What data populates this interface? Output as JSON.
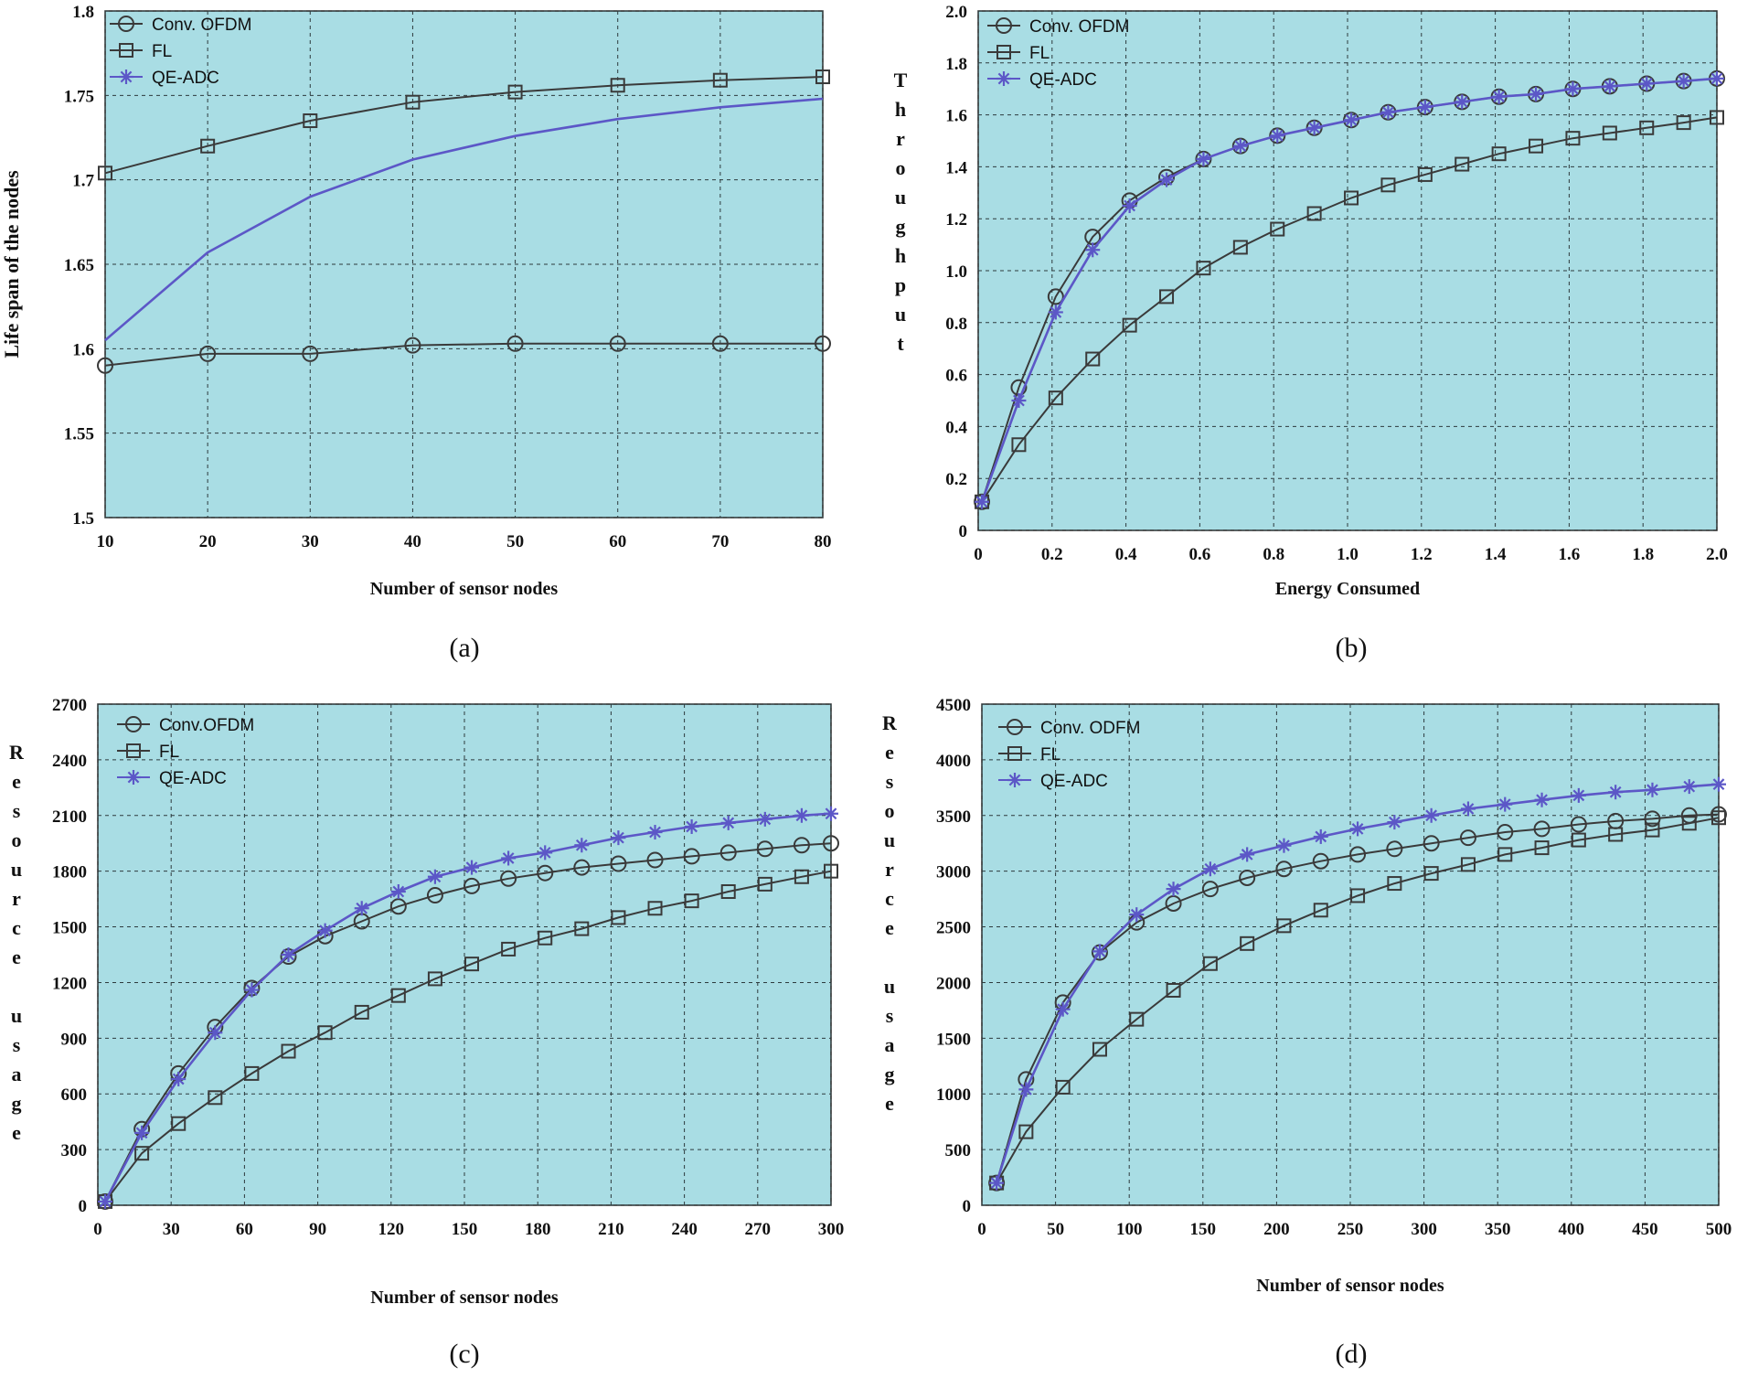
{
  "colors": {
    "plot_bg": "#a9dde4",
    "grid": "#2d3a3d",
    "black_series": "#3a3a3a",
    "qe_series": "#5c57c7"
  },
  "chart_data": [
    {
      "id": "a",
      "type": "line",
      "caption": "(a)",
      "xlabel": "Number of sensor nodes",
      "ylabel": "Life span of the nodes",
      "ylabel_style": "rotated",
      "xlim": [
        10,
        80
      ],
      "ylim": [
        1.5,
        1.8
      ],
      "xticks": [
        10,
        20,
        30,
        40,
        50,
        60,
        70,
        80
      ],
      "xtick_labels": [
        "10",
        "20",
        "30",
        "40",
        "50",
        "60",
        "70",
        "80"
      ],
      "yticks": [
        1.5,
        1.55,
        1.6,
        1.65,
        1.7,
        1.75,
        1.8
      ],
      "ytick_labels": [
        "1.5",
        "1.55",
        "1.6",
        "1.65",
        "1.7",
        "1.75",
        "1.8"
      ],
      "legend": [
        "Conv. OFDM",
        "FL",
        "QE-ADC"
      ],
      "series": [
        {
          "name": "Conv. OFDM",
          "marker": "circle",
          "x": [
            10,
            20,
            30,
            40,
            50,
            60,
            70,
            80
          ],
          "y": [
            1.59,
            1.597,
            1.597,
            1.602,
            1.603,
            1.603,
            1.603,
            1.603
          ]
        },
        {
          "name": "FL",
          "marker": "square",
          "x": [
            10,
            20,
            30,
            40,
            50,
            60,
            70,
            80
          ],
          "y": [
            1.704,
            1.72,
            1.735,
            1.746,
            1.752,
            1.756,
            1.759,
            1.761
          ]
        },
        {
          "name": "QE-ADC",
          "marker": "star",
          "markers": false,
          "x": [
            10,
            20,
            30,
            40,
            50,
            60,
            70,
            80
          ],
          "y": [
            1.605,
            1.657,
            1.69,
            1.712,
            1.726,
            1.736,
            1.743,
            1.748
          ]
        }
      ]
    },
    {
      "id": "b",
      "type": "line",
      "caption": "(b)",
      "xlabel": "Energy Consumed",
      "ylabel": "Throughput",
      "ylabel_style": "stacked",
      "xlim": [
        0,
        2.0
      ],
      "ylim": [
        0,
        2.0
      ],
      "xticks": [
        0,
        0.2,
        0.4,
        0.6,
        0.8,
        1.0,
        1.2,
        1.4,
        1.6,
        1.8,
        2.0
      ],
      "xtick_labels": [
        "0",
        "0.2",
        "0.4",
        "0.6",
        "0.8",
        "1.0",
        "1.2",
        "1.4",
        "1.6",
        "1.8",
        "2.0"
      ],
      "yticks": [
        0,
        0.2,
        0.4,
        0.6,
        0.8,
        1.0,
        1.2,
        1.4,
        1.6,
        1.8,
        2.0
      ],
      "ytick_labels": [
        "0",
        "0.2",
        "0.4",
        "0.6",
        "0.8",
        "1.0",
        "1.2",
        "1.4",
        "1.6",
        "1.8",
        "2.0"
      ],
      "legend": [
        "Conv. OFDM",
        "FL",
        "QE-ADC"
      ],
      "series": [
        {
          "name": "Conv. OFDM",
          "marker": "circle",
          "x": [
            0.01,
            0.11,
            0.21,
            0.31,
            0.41,
            0.51,
            0.61,
            0.71,
            0.81,
            0.91,
            1.01,
            1.11,
            1.21,
            1.31,
            1.41,
            1.51,
            1.61,
            1.71,
            1.81,
            1.91,
            2.0
          ],
          "y": [
            0.11,
            0.55,
            0.9,
            1.13,
            1.27,
            1.36,
            1.43,
            1.48,
            1.52,
            1.55,
            1.58,
            1.61,
            1.63,
            1.65,
            1.67,
            1.68,
            1.7,
            1.71,
            1.72,
            1.73,
            1.74
          ]
        },
        {
          "name": "FL",
          "marker": "square",
          "x": [
            0.01,
            0.11,
            0.21,
            0.31,
            0.41,
            0.51,
            0.61,
            0.71,
            0.81,
            0.91,
            1.01,
            1.11,
            1.21,
            1.31,
            1.41,
            1.51,
            1.61,
            1.71,
            1.81,
            1.91,
            2.0
          ],
          "y": [
            0.11,
            0.33,
            0.51,
            0.66,
            0.79,
            0.9,
            1.01,
            1.09,
            1.16,
            1.22,
            1.28,
            1.33,
            1.37,
            1.41,
            1.45,
            1.48,
            1.51,
            1.53,
            1.55,
            1.57,
            1.59
          ]
        },
        {
          "name": "QE-ADC",
          "marker": "star",
          "x": [
            0.01,
            0.11,
            0.21,
            0.31,
            0.41,
            0.51,
            0.61,
            0.71,
            0.81,
            0.91,
            1.01,
            1.11,
            1.21,
            1.31,
            1.41,
            1.51,
            1.61,
            1.71,
            1.81,
            1.91,
            2.0
          ],
          "y": [
            0.11,
            0.5,
            0.84,
            1.08,
            1.25,
            1.35,
            1.43,
            1.48,
            1.52,
            1.55,
            1.58,
            1.61,
            1.63,
            1.65,
            1.67,
            1.68,
            1.7,
            1.71,
            1.72,
            1.73,
            1.74
          ]
        }
      ]
    },
    {
      "id": "c",
      "type": "line",
      "caption": "(c)",
      "xlabel": "Number of sensor nodes",
      "ylabel": "Resource usage",
      "ylabel_style": "stacked",
      "xlim": [
        0,
        300
      ],
      "ylim": [
        0,
        2700
      ],
      "xticks": [
        0,
        30,
        60,
        90,
        120,
        150,
        180,
        210,
        240,
        270,
        300
      ],
      "xtick_labels": [
        "0",
        "30",
        "60",
        "90",
        "120",
        "150",
        "180",
        "210",
        "240",
        "270",
        "300"
      ],
      "yticks": [
        0,
        300,
        600,
        900,
        1200,
        1500,
        1800,
        2100,
        2400,
        2700
      ],
      "ytick_labels": [
        "0",
        "300",
        "600",
        "900",
        "1200",
        "1500",
        "1800",
        "2100",
        "2400",
        "2700"
      ],
      "legend": [
        "Conv.OFDM",
        "FL",
        "QE-ADC"
      ],
      "series": [
        {
          "name": "Conv.OFDM",
          "marker": "circle",
          "x": [
            3,
            18,
            33,
            48,
            63,
            78,
            93,
            108,
            123,
            138,
            153,
            168,
            183,
            198,
            213,
            228,
            243,
            258,
            273,
            288,
            300
          ],
          "y": [
            20,
            410,
            710,
            960,
            1170,
            1340,
            1450,
            1530,
            1610,
            1670,
            1720,
            1760,
            1790,
            1820,
            1840,
            1860,
            1880,
            1900,
            1920,
            1940,
            1950
          ]
        },
        {
          "name": "FL",
          "marker": "square",
          "x": [
            3,
            18,
            33,
            48,
            63,
            78,
            93,
            108,
            123,
            138,
            153,
            168,
            183,
            198,
            213,
            228,
            243,
            258,
            273,
            288,
            300
          ],
          "y": [
            20,
            280,
            440,
            580,
            710,
            830,
            930,
            1040,
            1130,
            1220,
            1300,
            1380,
            1440,
            1490,
            1550,
            1600,
            1640,
            1690,
            1730,
            1770,
            1800
          ]
        },
        {
          "name": "QE-ADC",
          "marker": "star",
          "x": [
            3,
            18,
            33,
            48,
            63,
            78,
            93,
            108,
            123,
            138,
            153,
            168,
            183,
            198,
            213,
            228,
            243,
            258,
            273,
            288,
            300
          ],
          "y": [
            20,
            390,
            680,
            930,
            1160,
            1350,
            1480,
            1600,
            1690,
            1770,
            1820,
            1870,
            1900,
            1940,
            1980,
            2010,
            2040,
            2060,
            2080,
            2100,
            2110
          ]
        }
      ]
    },
    {
      "id": "d",
      "type": "line",
      "caption": "(d)",
      "xlabel": "Number of sensor nodes",
      "ylabel": "Resource usage",
      "ylabel_style": "stacked",
      "xlim": [
        0,
        500
      ],
      "ylim": [
        0,
        4500
      ],
      "xticks": [
        0,
        50,
        100,
        150,
        200,
        250,
        300,
        350,
        400,
        450,
        500
      ],
      "xtick_labels": [
        "0",
        "50",
        "100",
        "150",
        "200",
        "250",
        "300",
        "350",
        "400",
        "450",
        "500"
      ],
      "yticks": [
        0,
        500,
        1000,
        1500,
        2000,
        2500,
        3000,
        3500,
        4000,
        4500
      ],
      "ytick_labels": [
        "0",
        "500",
        "1000",
        "1500",
        "2000",
        "2500",
        "3000",
        "3500",
        "4000",
        "4500"
      ],
      "legend": [
        "Conv. ODFM",
        "FL",
        "QE-ADC"
      ],
      "series": [
        {
          "name": "Conv. ODFM",
          "marker": "circle",
          "x": [
            10,
            30,
            55,
            80,
            105,
            130,
            155,
            180,
            205,
            230,
            255,
            280,
            305,
            330,
            355,
            380,
            405,
            430,
            455,
            480,
            500
          ],
          "y": [
            200,
            1130,
            1820,
            2270,
            2540,
            2710,
            2840,
            2940,
            3020,
            3090,
            3150,
            3200,
            3250,
            3300,
            3350,
            3380,
            3420,
            3450,
            3470,
            3500,
            3510
          ]
        },
        {
          "name": "FL",
          "marker": "square",
          "x": [
            10,
            30,
            55,
            80,
            105,
            130,
            155,
            180,
            205,
            230,
            255,
            280,
            305,
            330,
            355,
            380,
            405,
            430,
            455,
            480,
            500
          ],
          "y": [
            200,
            660,
            1060,
            1400,
            1670,
            1930,
            2170,
            2350,
            2510,
            2650,
            2780,
            2890,
            2980,
            3060,
            3150,
            3210,
            3280,
            3330,
            3370,
            3430,
            3480
          ]
        },
        {
          "name": "QE-ADC",
          "marker": "star",
          "x": [
            10,
            30,
            55,
            80,
            105,
            130,
            155,
            180,
            205,
            230,
            255,
            280,
            305,
            330,
            355,
            380,
            405,
            430,
            455,
            480,
            500
          ],
          "y": [
            200,
            1040,
            1760,
            2280,
            2610,
            2840,
            3020,
            3150,
            3230,
            3310,
            3380,
            3440,
            3500,
            3560,
            3600,
            3640,
            3680,
            3710,
            3730,
            3760,
            3780
          ]
        }
      ]
    }
  ]
}
